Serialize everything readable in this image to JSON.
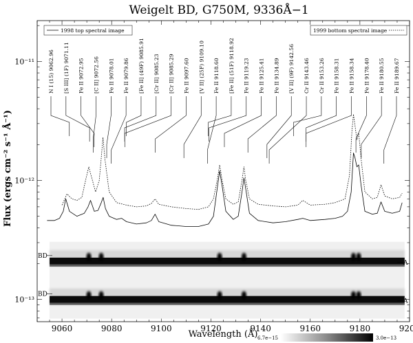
{
  "chart_data": {
    "type": "line",
    "title": "Weigelt BD, G750M, 9336Å−1",
    "xlabel": "Wavelength (Å)",
    "ylabel": "Flux (ergs cm⁻² s⁻¹ Å⁻¹)",
    "xlim": [
      9050,
      9200
    ],
    "ylim": [
      6.5e-14,
      2.2e-11
    ],
    "yscale": "log",
    "xticks": [
      9060,
      9080,
      9100,
      9120,
      9140,
      9160,
      9180,
      9200
    ],
    "xtick_labels": [
      "9060",
      "9080",
      "9100",
      "9120",
      "9140",
      "9160",
      "9180",
      "9200"
    ],
    "yticks": [
      1e-13,
      1e-12,
      1e-11
    ],
    "ytick_labels": [
      "10⁻¹³",
      "10⁻¹²",
      "10⁻¹¹"
    ],
    "grid": false,
    "legend": [
      {
        "label": "1998 top spectral image",
        "style": "solid",
        "position": "top-left"
      },
      {
        "label": "1999 bottom spectral image",
        "style": "dotted",
        "position": "top-right"
      }
    ],
    "series": [
      {
        "name": "1998 top spectral image",
        "style": "solid",
        "x": [
          9054,
          9057,
          9059,
          9060.5,
          9061.5,
          9063,
          9066,
          9069,
          9070.5,
          9071.5,
          9073,
          9074.5,
          9075.8,
          9076.6,
          9077.5,
          9079,
          9082,
          9084,
          9086,
          9090,
          9094,
          9096,
          9097.5,
          9099,
          9104,
          9110,
          9115,
          9119,
          9121,
          9122.5,
          9123.5,
          9124.5,
          9126,
          9129,
          9131,
          9132.5,
          9133.3,
          9134,
          9135.5,
          9139,
          9142,
          9145,
          9150,
          9155,
          9157,
          9160,
          9166,
          9170,
          9173,
          9175,
          9176.5,
          9177.4,
          9178,
          9178.8,
          9179.5,
          9180.5,
          9182,
          9185,
          9187,
          9188.5,
          9190,
          9193,
          9196,
          9197
        ],
        "y": [
          4.6e-13,
          4.6e-13,
          4.8e-13,
          5.5e-13,
          7e-13,
          5.5e-13,
          5e-13,
          5.3e-13,
          6e-13,
          6.8e-13,
          5.5e-13,
          5.6e-13,
          6.5e-13,
          7.2e-13,
          5.8e-13,
          5e-13,
          4.7e-13,
          4.8e-13,
          4.5e-13,
          4.3e-13,
          4.4e-13,
          4.6e-13,
          5.2e-13,
          4.5e-13,
          4.2e-13,
          4.1e-13,
          4.1e-13,
          4.3e-13,
          5e-13,
          8.5e-13,
          1.2e-12,
          9e-13,
          5.5e-13,
          4.7e-13,
          5e-13,
          8e-13,
          1.05e-12,
          8.5e-13,
          5.3e-13,
          4.6e-13,
          4.5e-13,
          4.4e-13,
          4.5e-13,
          4.7e-13,
          4.8e-13,
          4.6e-13,
          4.7e-13,
          4.8e-13,
          5e-13,
          5.5e-13,
          8e-13,
          1.7e-12,
          1.55e-12,
          1.3e-12,
          1.35e-12,
          9e-13,
          5.5e-13,
          5.2e-13,
          5.3e-13,
          6.6e-13,
          5.5e-13,
          5.3e-13,
          5.5e-13,
          6.5e-13
        ]
      },
      {
        "name": "1999 bottom spectral image",
        "style": "dotted",
        "x": [
          9060,
          9062,
          9064,
          9066,
          9068,
          9069.5,
          9070.8,
          9072,
          9073.5,
          9075,
          9075.8,
          9076.5,
          9077.3,
          9079,
          9082,
          9086,
          9090,
          9094,
          9096,
          9097.5,
          9099,
          9104,
          9110,
          9115,
          9119,
          9121,
          9122.5,
          9123.5,
          9124.5,
          9126,
          9129,
          9131,
          9132.5,
          9133.3,
          9134,
          9135.5,
          9139,
          9145,
          9150,
          9155,
          9157,
          9160,
          9166,
          9170,
          9174,
          9175.8,
          9176.8,
          9177.4,
          9178,
          9178.8,
          9179.5,
          9180.5,
          9182,
          9185,
          9187,
          9188.5,
          9190,
          9193,
          9196,
          9197
        ],
        "y": [
          6.2e-13,
          7.7e-13,
          7e-13,
          6.8e-13,
          7.2e-13,
          1e-12,
          1.3e-12,
          1.05e-12,
          8e-13,
          1e-12,
          1.55e-12,
          2.3e-12,
          1.5e-12,
          8e-13,
          6.5e-13,
          6.2e-13,
          6e-13,
          6.1e-13,
          6.4e-13,
          7e-13,
          6.3e-13,
          6e-13,
          5.8e-13,
          5.7e-13,
          6e-13,
          7e-13,
          1e-12,
          1.35e-12,
          1e-12,
          7e-13,
          6.3e-13,
          6.6e-13,
          1e-12,
          1.3e-12,
          1e-12,
          7e-13,
          6.3e-13,
          6.1e-13,
          6e-13,
          6.2e-13,
          6.8e-13,
          6.2e-13,
          6.3e-13,
          6.5e-13,
          7e-13,
          1.1e-12,
          2.6e-12,
          3.6e-12,
          2.9e-12,
          2.2e-12,
          2.5e-12,
          1.5e-12,
          8e-13,
          7e-13,
          7.2e-13,
          9.2e-13,
          7.4e-13,
          7e-13,
          7.2e-13,
          7.8e-13
        ]
      }
    ],
    "line_ids": [
      {
        "label": "N I (15) 9062.96",
        "wavelength": 9062.96
      },
      {
        "label": "[S III] (1F) 9071.11",
        "wavelength": 9071.11
      },
      {
        "label": "Fe II 9072.95",
        "wavelength": 9072.95
      },
      {
        "label": "[C II] 9072.56",
        "wavelength": 9072.56
      },
      {
        "label": "Fe II 9078.01",
        "wavelength": 9078.01
      },
      {
        "label": "Fe II 9079.86",
        "wavelength": 9079.86
      },
      {
        "label": "[Fe II] (49F) 9085.91",
        "wavelength": 9085.91
      },
      {
        "label": "[Cr II] 9085.23",
        "wavelength": 9085.23
      },
      {
        "label": "[Cr II] 9085.29",
        "wavelength": 9085.29
      },
      {
        "label": "Fe II 9097.60",
        "wavelength": 9097.6
      },
      {
        "label": "[V II] (25F) 9109.10",
        "wavelength": 9109.1
      },
      {
        "label": "Fe II 9118.60",
        "wavelength": 9118.6
      },
      {
        "label": "[Fe II] (51F) 9118.92",
        "wavelength": 9118.92
      },
      {
        "label": "Fe II 9119.23",
        "wavelength": 9119.23
      },
      {
        "label": "Fe II 9125.41",
        "wavelength": 9125.41
      },
      {
        "label": "Fe II 9134.89",
        "wavelength": 9134.89
      },
      {
        "label": "[V II] (9F) 9142.56",
        "wavelength": 9142.56
      },
      {
        "label": "Cr II 9143.46",
        "wavelength": 9143.46
      },
      {
        "label": "Cr II 9153.26",
        "wavelength": 9153.26
      },
      {
        "label": "Fe II 9158.31",
        "wavelength": 9158.31
      },
      {
        "label": "Fe II 9158.34",
        "wavelength": 9158.34
      },
      {
        "label": "Fe II 9178.40",
        "wavelength": 9178.4
      },
      {
        "label": "Fe II 9180.55",
        "wavelength": 9180.55
      },
      {
        "label": "Fe II 9189.67",
        "wavelength": 9189.67
      }
    ],
    "spectral_images": [
      {
        "left_label": "BD",
        "right_label": "A",
        "emission_wavelengths": [
          9070.8,
          9075.8,
          9123.5,
          9133.3,
          9177.4,
          9179.5
        ]
      },
      {
        "left_label": "BD",
        "right_label": "A",
        "emission_wavelengths": [
          9070.8,
          9075.8,
          9123.5,
          9133.3,
          9177.4,
          9179.5
        ]
      }
    ],
    "colorbar": {
      "min_label": "6.7e−15",
      "max_label": "3.0e−13"
    }
  }
}
